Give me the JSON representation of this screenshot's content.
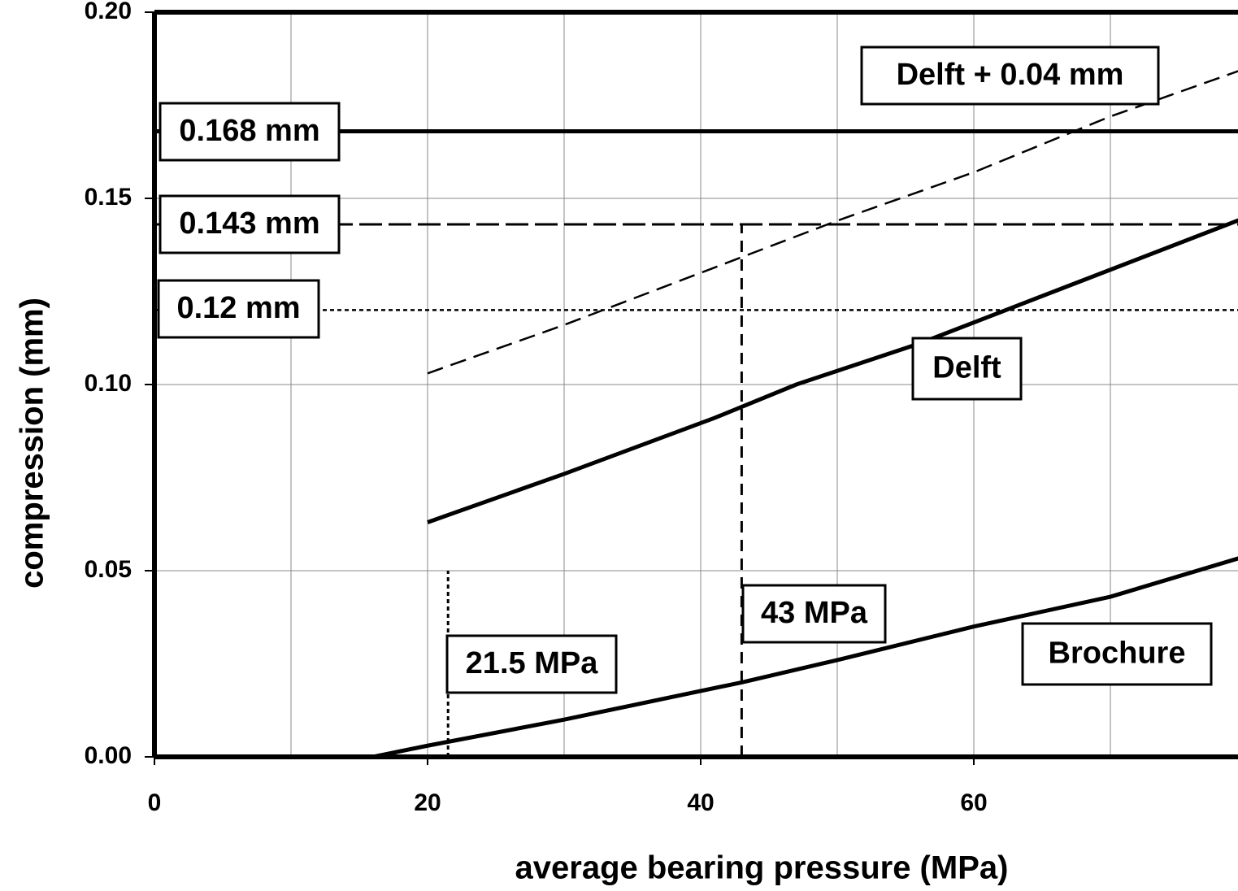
{
  "chart_data": {
    "type": "line",
    "xlabel": "average bearing pressure  (MPa)",
    "ylabel": "compression (mm)",
    "xlim": [
      0,
      80
    ],
    "ylim": [
      0,
      0.2
    ],
    "xticks": [
      0,
      20,
      40,
      60
    ],
    "xgrid": [
      10,
      20,
      30,
      40,
      50,
      60,
      70
    ],
    "yticks": [
      {
        "value": 0,
        "label": "0.00"
      },
      {
        "value": 0.05,
        "label": "0.05"
      },
      {
        "value": 0.1,
        "label": "0.10"
      },
      {
        "value": 0.15,
        "label": "0.15"
      },
      {
        "value": 0.2,
        "label": "0.20"
      }
    ],
    "grid": true,
    "series": [
      {
        "name": "Delft + 0.04 mm",
        "color": "#000000",
        "dash": "dashed",
        "x": [
          20,
          30,
          40,
          50,
          60,
          70,
          80
        ],
        "values": [
          0.103,
          0.116,
          0.13,
          0.144,
          0.157,
          0.172,
          0.185
        ]
      },
      {
        "name": "Delft",
        "color": "#000000",
        "dash": "solid",
        "x": [
          20,
          30,
          41,
          47,
          56,
          68,
          80
        ],
        "values": [
          0.063,
          0.076,
          0.091,
          0.1,
          0.111,
          0.128,
          0.145
        ]
      },
      {
        "name": "Brochure",
        "color": "#000000",
        "dash": "solid",
        "x": [
          16,
          20,
          30,
          43,
          50,
          60,
          70,
          80
        ],
        "values": [
          0,
          0.003,
          0.01,
          0.02,
          0.026,
          0.035,
          0.043,
          0.054
        ]
      }
    ],
    "hlines": [
      {
        "label": "0.168 mm",
        "y": 0.168,
        "style": "solid"
      },
      {
        "label": "0.143 mm",
        "y": 0.143,
        "style": "dashed"
      },
      {
        "label": "0.12 mm",
        "y": 0.12,
        "style": "dotted"
      }
    ],
    "vlines": [
      {
        "label": "21.5 MPa",
        "x": 21.5,
        "ymax": 0.05,
        "style": "dotted"
      },
      {
        "label": "43 MPa",
        "x": 43,
        "ymax": 0.143,
        "style": "dashed"
      }
    ]
  }
}
